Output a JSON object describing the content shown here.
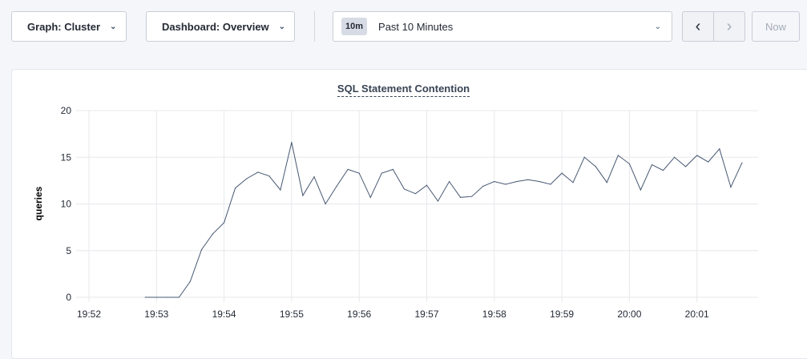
{
  "toolbar": {
    "graph_label": "Graph: Cluster",
    "dashboard_label": "Dashboard: Overview",
    "time_badge": "10m",
    "time_range": "Past 10 Minutes",
    "prev_icon": "chevron-left-icon",
    "next_icon": "chevron-right-icon",
    "now_label": "Now"
  },
  "chart_data": {
    "type": "line",
    "title": "SQL Statement Contention",
    "ylabel": "queries",
    "xlabel": "",
    "ylim": [
      0,
      20
    ],
    "yticks": [
      0,
      5,
      10,
      15,
      20
    ],
    "xticks": [
      "19:52",
      "19:53",
      "19:54",
      "19:55",
      "19:56",
      "19:57",
      "19:58",
      "19:59",
      "20:00",
      "20:01"
    ],
    "grid": true,
    "line_color": "#475872",
    "x": [
      "19:52:50",
      "19:53:00",
      "19:53:10",
      "19:53:20",
      "19:53:30",
      "19:53:40",
      "19:53:50",
      "19:54:00",
      "19:54:10",
      "19:54:20",
      "19:54:30",
      "19:54:40",
      "19:54:50",
      "19:55:00",
      "19:55:10",
      "19:55:20",
      "19:55:30",
      "19:55:40",
      "19:55:50",
      "19:56:00",
      "19:56:10",
      "19:56:20",
      "19:56:30",
      "19:56:40",
      "19:56:50",
      "19:57:00",
      "19:57:10",
      "19:57:20",
      "19:57:30",
      "19:57:40",
      "19:57:50",
      "19:58:00",
      "19:58:10",
      "19:58:20",
      "19:58:30",
      "19:58:40",
      "19:58:50",
      "19:59:00",
      "19:59:10",
      "19:59:20",
      "19:59:30",
      "19:59:40",
      "19:59:50",
      "20:00:00",
      "20:00:10",
      "20:00:20",
      "20:00:30",
      "20:00:40",
      "20:00:50",
      "20:01:00",
      "20:01:10",
      "20:01:20",
      "20:01:30",
      "20:01:40"
    ],
    "values": [
      0,
      0,
      0,
      0,
      1.7,
      5.1,
      6.8,
      8.0,
      11.7,
      12.7,
      13.4,
      13.0,
      11.5,
      16.6,
      10.9,
      12.9,
      10.0,
      11.9,
      13.7,
      13.3,
      10.7,
      13.3,
      13.7,
      11.6,
      11.1,
      12.0,
      10.3,
      12.4,
      10.7,
      10.8,
      11.9,
      12.4,
      12.1,
      12.4,
      12.6,
      12.4,
      12.1,
      13.3,
      12.3,
      15.0,
      14.0,
      12.3,
      15.2,
      14.3,
      11.5,
      14.2,
      13.6,
      15.0,
      14.0,
      15.2,
      14.5,
      15.9,
      11.8,
      14.4
    ]
  }
}
